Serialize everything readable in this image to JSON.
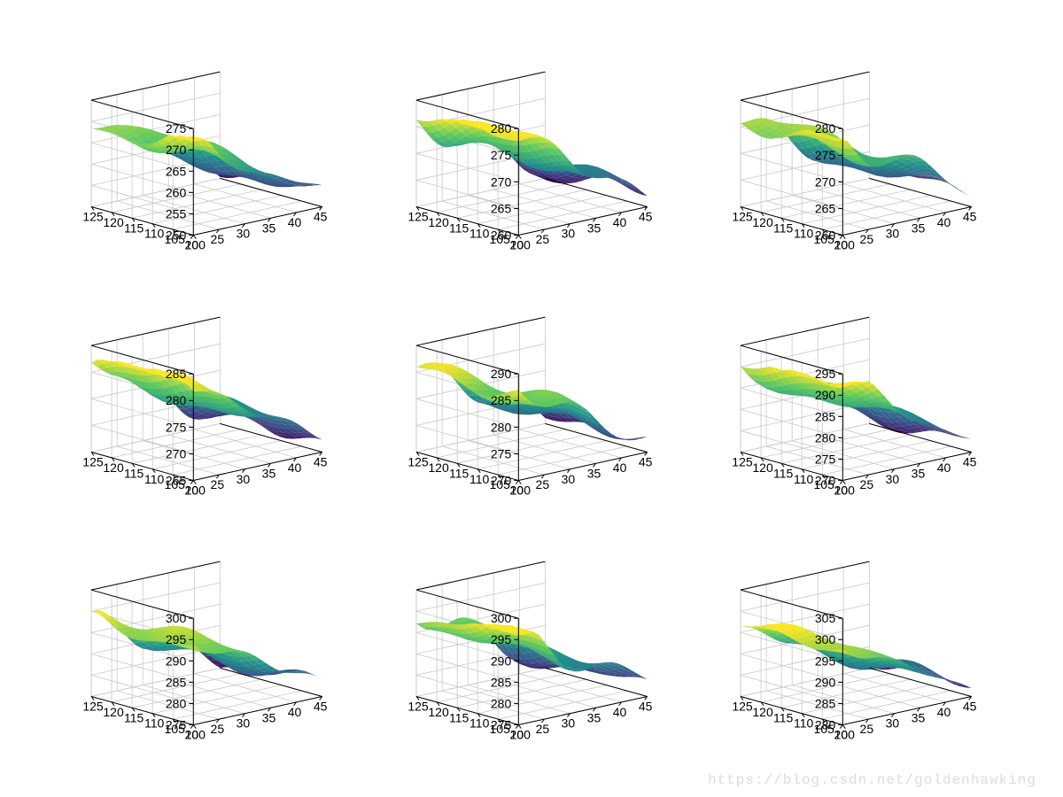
{
  "layout": {
    "rows": 3,
    "cols": 3,
    "background_color": "#ffffff",
    "grid_color": "#c8c8c8",
    "axis_color": "#000000",
    "label_fontsize": 14,
    "label_color": "#000000",
    "colormap": "viridis",
    "colormap_stops": [
      {
        "t": 0.0,
        "c": "#440154"
      },
      {
        "t": 0.25,
        "c": "#3b528b"
      },
      {
        "t": 0.5,
        "c": "#21918c"
      },
      {
        "t": 0.75,
        "c": "#5ec962"
      },
      {
        "t": 1.0,
        "c": "#fde725"
      }
    ]
  },
  "axes_common": {
    "x": {
      "lim": [
        20,
        45
      ],
      "ticks": [
        20,
        25,
        30,
        35,
        40,
        45
      ],
      "tick_labels": [
        "20",
        "25",
        "30",
        "35",
        "40",
        "45"
      ]
    },
    "y": {
      "lim": [
        100,
        125
      ],
      "ticks": [
        100,
        105,
        110,
        115,
        120,
        125
      ],
      "tick_labels": [
        "100",
        "105",
        "110",
        "115",
        "120",
        "125"
      ]
    },
    "view": {
      "azimuth": -37.5,
      "elevation": 30
    }
  },
  "panels": [
    {
      "z": {
        "lim": [
          250,
          275
        ],
        "ticks": [
          250,
          255,
          260,
          265,
          270,
          275
        ],
        "tick_labels": [
          "250",
          "255",
          "260",
          "265",
          "270",
          "275"
        ]
      },
      "surface_zrange": [
        250,
        272
      ]
    },
    {
      "z": {
        "lim": [
          260,
          280
        ],
        "ticks": [
          260,
          265,
          270,
          275,
          280
        ],
        "tick_labels": [
          "260",
          "265",
          "270",
          "275",
          "280"
        ]
      },
      "surface_zrange": [
        260,
        278
      ]
    },
    {
      "z": {
        "lim": [
          260,
          280
        ],
        "ticks": [
          260,
          265,
          270,
          275,
          280
        ],
        "tick_labels": [
          "260",
          "265",
          "270",
          "275",
          "280"
        ]
      },
      "surface_zrange": [
        260,
        278
      ]
    },
    {
      "z": {
        "lim": [
          265,
          285
        ],
        "ticks": [
          265,
          270,
          275,
          280,
          285
        ],
        "tick_labels": [
          "265",
          "270",
          "275",
          "280",
          "285"
        ]
      },
      "surface_zrange": [
        265,
        283
      ]
    },
    {
      "z": {
        "lim": [
          270,
          290
        ],
        "ticks": [
          270,
          275,
          280,
          285,
          290
        ],
        "tick_labels": [
          "270",
          "275",
          "280",
          "285",
          "290"
        ]
      },
      "surface_zrange": [
        270,
        287
      ]
    },
    {
      "z": {
        "lim": [
          270,
          295
        ],
        "ticks": [
          270,
          275,
          280,
          285,
          290,
          295
        ],
        "tick_labels": [
          "270",
          "275",
          "280",
          "285",
          "290",
          "295"
        ]
      },
      "surface_zrange": [
        270,
        292
      ]
    },
    {
      "z": {
        "lim": [
          275,
          300
        ],
        "ticks": [
          275,
          280,
          285,
          290,
          295,
          300
        ],
        "tick_labels": [
          "275",
          "280",
          "285",
          "290",
          "295",
          "300"
        ]
      },
      "surface_zrange": [
        275,
        295
      ]
    },
    {
      "z": {
        "lim": [
          275,
          300
        ],
        "ticks": [
          275,
          280,
          285,
          290,
          295,
          300
        ],
        "tick_labels": [
          "275",
          "280",
          "285",
          "290",
          "295",
          "300"
        ]
      },
      "surface_zrange": [
        275,
        296
      ]
    },
    {
      "z": {
        "lim": [
          280,
          305
        ],
        "ticks": [
          280,
          285,
          290,
          295,
          300,
          305
        ],
        "tick_labels": [
          "280",
          "285",
          "290",
          "295",
          "300",
          "305"
        ]
      },
      "surface_zrange": [
        280,
        298
      ]
    }
  ],
  "watermark": "https://blog.csdn.net/goldenhawking"
}
